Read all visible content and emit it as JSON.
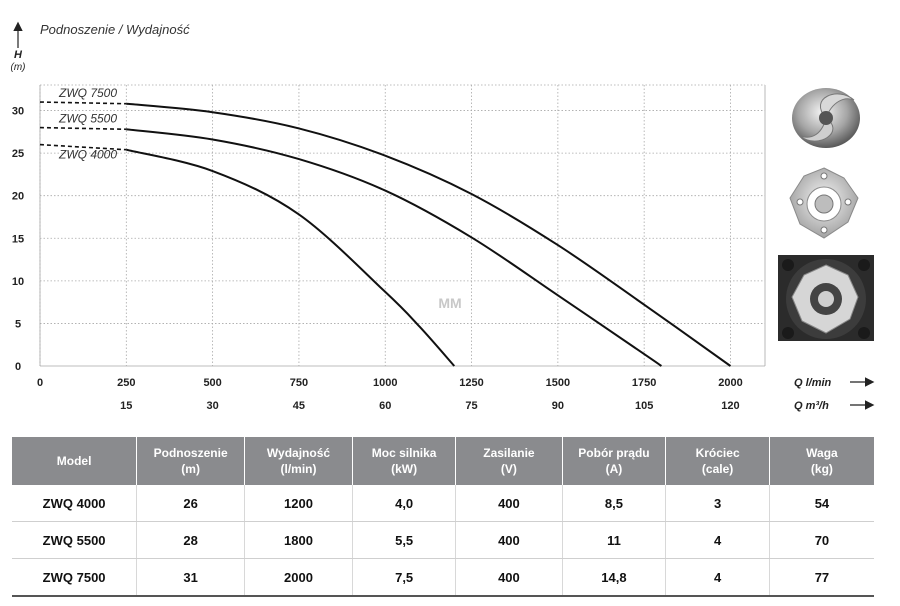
{
  "chart_data": {
    "type": "line",
    "title": "Podnoszenie / Wydajność",
    "ylabel": "H",
    "yunit": "(m)",
    "xlabel": "Q l/min",
    "x2label": "Q m³/h",
    "ylim": [
      0,
      33
    ],
    "xlim": [
      0,
      2100
    ],
    "y_ticks": [
      0,
      5,
      10,
      15,
      20,
      25,
      30
    ],
    "x_ticks": [
      0,
      250,
      500,
      750,
      1000,
      1250,
      1500,
      1750,
      2000
    ],
    "x2_ticks": [
      15,
      30,
      45,
      60,
      75,
      90,
      105,
      120
    ],
    "series": [
      {
        "name": "ZWQ 7500",
        "x": [
          0,
          250,
          500,
          750,
          1000,
          1250,
          1500,
          1750,
          2000
        ],
        "y": [
          31,
          30.8,
          29.8,
          27.9,
          24.7,
          20.2,
          14.2,
          7.2,
          0
        ]
      },
      {
        "name": "ZWQ 5500",
        "x": [
          0,
          250,
          500,
          750,
          1000,
          1250,
          1500,
          1750,
          1800
        ],
        "y": [
          28,
          27.8,
          26.6,
          24.3,
          20.6,
          15.1,
          8.3,
          1.4,
          0
        ]
      },
      {
        "name": "ZWQ 4000",
        "x": [
          0,
          250,
          500,
          750,
          1000,
          1100,
          1200
        ],
        "y": [
          26,
          25.4,
          22.9,
          17.8,
          8.7,
          4.6,
          0
        ]
      }
    ],
    "watermark": "MM",
    "grid": true,
    "legend": "inline-left"
  },
  "table": {
    "headers": [
      [
        "Model",
        ""
      ],
      [
        "Podnoszenie",
        "(m)"
      ],
      [
        "Wydajność",
        "(l/min)"
      ],
      [
        "Moc silnika",
        "(kW)"
      ],
      [
        "Zasilanie",
        "(V)"
      ],
      [
        "Pobór prądu",
        "(A)"
      ],
      [
        "Króciec",
        "(cale)"
      ],
      [
        "Waga",
        "(kg)"
      ]
    ],
    "rows": [
      [
        "ZWQ 4000",
        "26",
        "1200",
        "4,0",
        "400",
        "8,5",
        "3",
        "54"
      ],
      [
        "ZWQ 5500",
        "28",
        "1800",
        "5,5",
        "400",
        "11",
        "4",
        "70"
      ],
      [
        "ZWQ 7500",
        "31",
        "2000",
        "7,5",
        "400",
        "14,8",
        "4",
        "77"
      ]
    ]
  },
  "images": [
    {
      "name": "impeller-icon"
    },
    {
      "name": "cutter-plate-icon"
    },
    {
      "name": "cutter-mounted-icon"
    }
  ]
}
